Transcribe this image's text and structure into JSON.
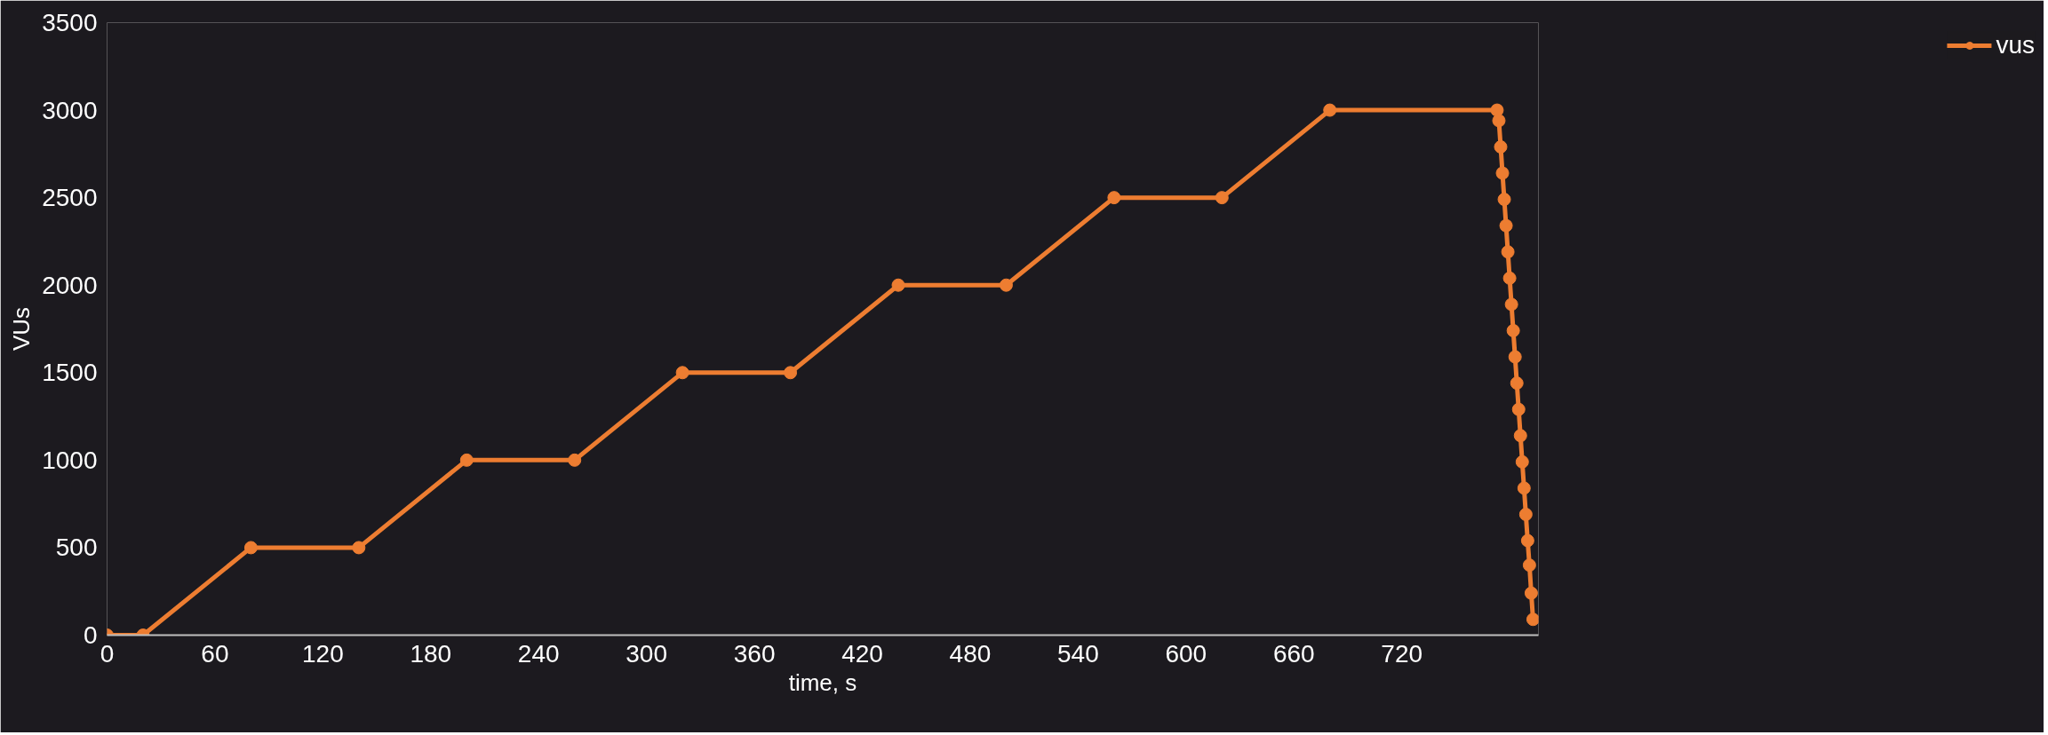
{
  "chart_data": {
    "type": "line",
    "xlabel": "time, s",
    "ylabel": "VUs",
    "x": [
      0,
      20,
      80,
      140,
      200,
      260,
      320,
      380,
      440,
      500,
      560,
      620,
      680,
      773,
      774,
      775,
      776,
      777,
      778,
      779,
      780,
      781,
      782,
      783,
      784,
      785,
      786,
      787,
      788,
      789,
      790,
      791,
      792,
      793
    ],
    "series": [
      {
        "name": "vus",
        "color": "#ed7d31",
        "values": [
          0,
          0,
          500,
          500,
          1000,
          1000,
          1500,
          1500,
          2000,
          2000,
          2500,
          2500,
          3000,
          3000,
          2940,
          2790,
          2640,
          2490,
          2340,
          2190,
          2040,
          1890,
          1740,
          1590,
          1440,
          1290,
          1140,
          990,
          840,
          690,
          540,
          400,
          240,
          90
        ]
      }
    ],
    "xlim": [
      0,
      796
    ],
    "ylim": [
      0,
      3500
    ],
    "xticks": [
      0,
      60,
      120,
      180,
      240,
      300,
      360,
      420,
      480,
      540,
      600,
      660,
      720
    ],
    "yticks": [
      0,
      500,
      1000,
      1500,
      2000,
      2500,
      3000,
      3500
    ],
    "grid": false,
    "legend": "right",
    "marker": "circle",
    "line_style": "solid"
  }
}
